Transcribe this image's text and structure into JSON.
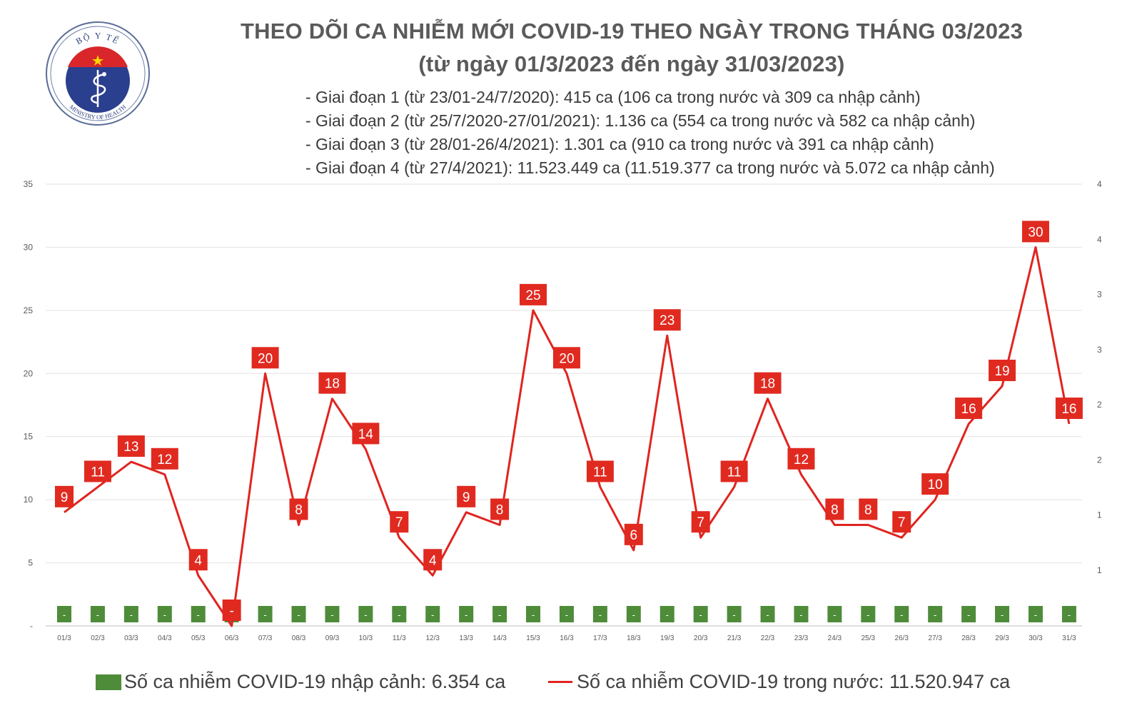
{
  "logo": {
    "top_text": "BỘ Y TẾ",
    "bottom_text": "MINISTRY OF HEALTH"
  },
  "title_line1": "THEO DÕI CA NHIỄM MỚI COVID-19 THEO NGÀY TRONG THÁNG 03/2023",
  "title_line2": "(từ ngày 01/3/2023 đến ngày 31/03/2023)",
  "notes": [
    "- Giai đoạn 1 (từ 23/01-24/7/2020): 415 ca (106 ca trong nước và 309 ca nhập cảnh)",
    "- Giai đoạn 2 (từ 25/7/2020-27/01/2021): 1.136 ca (554 ca trong nước và 582 ca nhập cảnh)",
    "- Giai đoạn 3 (từ 28/01-26/4/2021): 1.301 ca (910 ca trong nước và 391 ca nhập cảnh)",
    "- Giai đoạn 4 (từ 27/4/2021): 11.523.449 ca (11.519.377 ca trong nước và 5.072 ca nhập cảnh)"
  ],
  "chart_data": {
    "type": "line",
    "categories": [
      "01/3",
      "02/3",
      "03/3",
      "04/3",
      "05/3",
      "06/3",
      "07/3",
      "08/3",
      "09/3",
      "10/3",
      "11/3",
      "12/3",
      "13/3",
      "14/3",
      "15/3",
      "16/3",
      "17/3",
      "18/3",
      "19/3",
      "20/3",
      "21/3",
      "22/3",
      "23/3",
      "24/3",
      "25/3",
      "26/3",
      "27/3",
      "28/3",
      "29/3",
      "30/3",
      "31/3"
    ],
    "series": [
      {
        "name": "Số ca nhiễm COVID-19 trong nước: 11.520.947 ca",
        "type": "line",
        "axis": "left",
        "color": "#e0241f",
        "values": [
          9,
          11,
          13,
          12,
          4,
          0,
          20,
          8,
          18,
          14,
          7,
          4,
          9,
          8,
          25,
          20,
          11,
          6,
          23,
          7,
          11,
          18,
          12,
          8,
          8,
          7,
          10,
          16,
          19,
          30,
          16
        ],
        "labels": [
          "9",
          "11",
          "13",
          "12",
          "4",
          "-",
          "20",
          "8",
          "18",
          "14",
          "7",
          "4",
          "9",
          "8",
          "25",
          "20",
          "11",
          "6",
          "23",
          "7",
          "11",
          "18",
          "12",
          "8",
          "8",
          "7",
          "10",
          "16",
          "19",
          "30",
          "16"
        ]
      },
      {
        "name": "Số ca nhiễm COVID-19 nhập cảnh: 6.354 ca",
        "type": "bar",
        "axis": "right",
        "color": "#4e8c3a",
        "values": [
          0,
          0,
          0,
          0,
          0,
          0,
          0,
          0,
          0,
          0,
          0,
          0,
          0,
          0,
          0,
          0,
          0,
          0,
          0,
          0,
          0,
          0,
          0,
          0,
          0,
          0,
          0,
          0,
          0,
          0,
          0
        ],
        "labels": [
          "-",
          "-",
          "-",
          "-",
          "-",
          "-",
          "-",
          "-",
          "-",
          "-",
          "-",
          "-",
          "-",
          "-",
          "-",
          "-",
          "-",
          "-",
          "-",
          "-",
          "-",
          "-",
          "-",
          "-",
          "-",
          "-",
          "-",
          "-",
          "-",
          "-",
          "-"
        ]
      }
    ],
    "y_left": {
      "ticks": [
        "-",
        "5",
        "10",
        "15",
        "20",
        "25",
        "30",
        "35"
      ],
      "range": [
        0,
        35
      ]
    },
    "y_right": {
      "ticks": [
        "1",
        "1",
        "2",
        "2",
        "3",
        "3",
        "4",
        "4"
      ]
    },
    "grid": true,
    "legend": "bottom"
  }
}
